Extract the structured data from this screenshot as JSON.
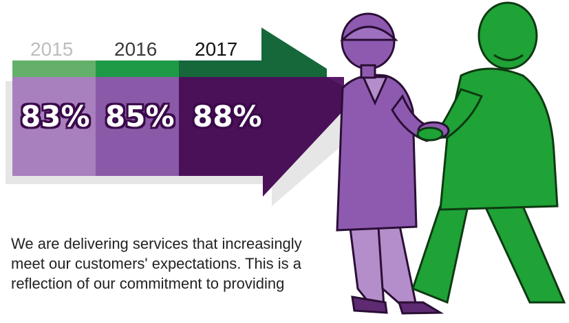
{
  "colors": {
    "green_light": "#64b06b",
    "green_mid": "#1e9a47",
    "green_dark": "#16673a",
    "purple_light": "#a880bd",
    "purple_mid": "#8a5aa8",
    "purple_dark": "#4a1158",
    "person_purple": "#8e5ab0",
    "person_green": "#1fa236",
    "shadow": "#e6e6e6"
  },
  "years": [
    {
      "label": "2015",
      "value": "83%",
      "color": "#bdbdbd"
    },
    {
      "label": "2016",
      "value": "85%",
      "color": "#3a3a3a"
    },
    {
      "label": "2017",
      "value": "88%",
      "color": "#111111"
    }
  ],
  "description": "We are delivering services that increasingly meet our customers' expectations. This is a reflection of our commitment to providing",
  "illustration": {
    "left_figure_icon": "businesswoman-icon",
    "right_figure_icon": "green-person-icon",
    "handshake_icon": "handshake-icon"
  }
}
